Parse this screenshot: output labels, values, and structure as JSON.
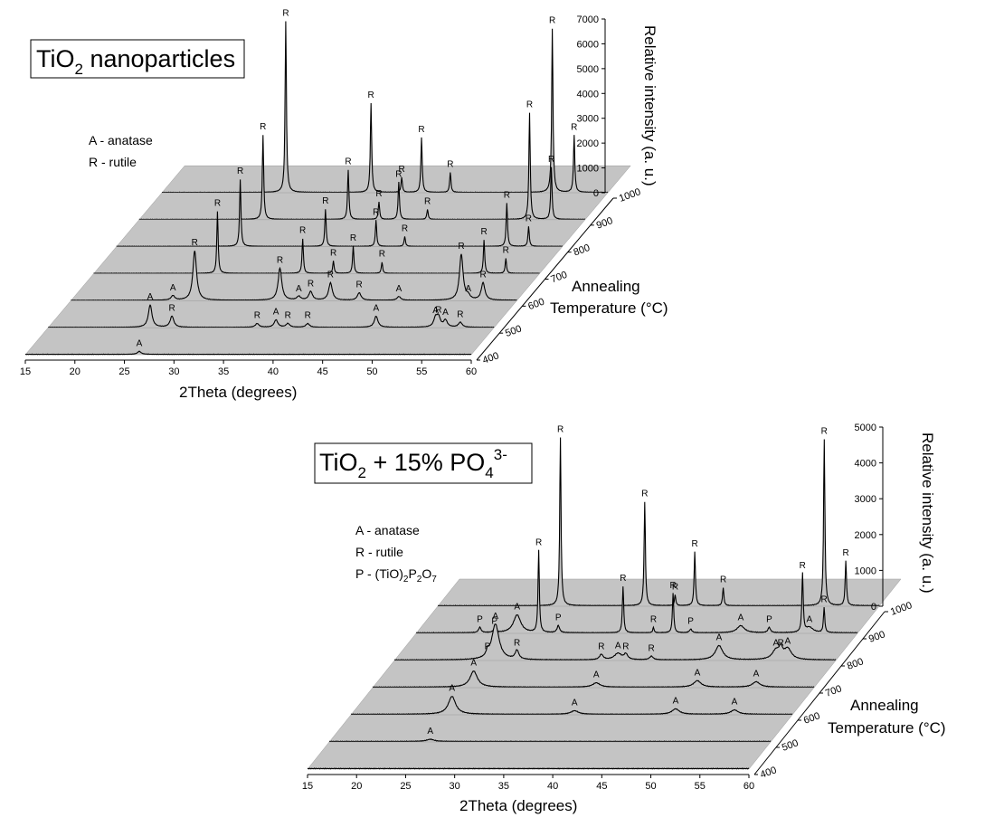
{
  "chart_data": [
    {
      "type": "line",
      "title_main": "TiO",
      "title_sub": "2",
      "title_rest": " nanoparticles",
      "legend": [
        {
          "key": "A",
          "text": "A - anatase"
        },
        {
          "key": "R",
          "text": "R - rutile"
        }
      ],
      "xlabel": "2Theta (degrees)",
      "zlabel_line1": "Annealing",
      "zlabel_line2": "Temperature (°C)",
      "ylabel": "Relative intensity (a. u.)",
      "xlim": [
        15,
        60
      ],
      "x_ticks": [
        15,
        20,
        25,
        30,
        35,
        40,
        45,
        50,
        55,
        60
      ],
      "ylim": [
        0,
        7000
      ],
      "y_ticks": [
        0,
        1000,
        2000,
        3000,
        4000,
        5000,
        6000,
        7000
      ],
      "z_ticks": [
        400,
        500,
        600,
        700,
        800,
        900,
        1000
      ],
      "series": [
        {
          "name": "400",
          "peaks": [
            {
              "x": 26.5,
              "y": 120,
              "label": "A"
            }
          ]
        },
        {
          "name": "500",
          "peaks": [
            {
              "x": 25.3,
              "y": 900,
              "label": "A"
            },
            {
              "x": 27.5,
              "y": 450,
              "label": "R"
            },
            {
              "x": 36.1,
              "y": 150,
              "label": "R"
            },
            {
              "x": 38.0,
              "y": 300,
              "label": "A"
            },
            {
              "x": 39.2,
              "y": 150,
              "label": "R"
            },
            {
              "x": 41.2,
              "y": 150,
              "label": "R"
            },
            {
              "x": 48.1,
              "y": 450,
              "label": "A"
            },
            {
              "x": 54.1,
              "y": 350,
              "label": "A"
            },
            {
              "x": 54.4,
              "y": 380,
              "label": "R"
            },
            {
              "x": 55.1,
              "y": 280,
              "label": "A"
            },
            {
              "x": 56.6,
              "y": 200,
              "label": "R"
            }
          ]
        },
        {
          "name": "600",
          "peaks": [
            {
              "x": 25.3,
              "y": 180,
              "label": "A"
            },
            {
              "x": 27.5,
              "y": 2000,
              "label": "R"
            },
            {
              "x": 36.1,
              "y": 1300,
              "label": "R"
            },
            {
              "x": 38.0,
              "y": 150,
              "label": "A"
            },
            {
              "x": 39.2,
              "y": 350,
              "label": "R"
            },
            {
              "x": 41.2,
              "y": 700,
              "label": "R"
            },
            {
              "x": 44.1,
              "y": 300,
              "label": "R"
            },
            {
              "x": 48.1,
              "y": 150,
              "label": "A"
            },
            {
              "x": 54.4,
              "y": 1850,
              "label": "R"
            },
            {
              "x": 55.1,
              "y": 150,
              "label": "A"
            },
            {
              "x": 56.6,
              "y": 700,
              "label": "R"
            }
          ]
        },
        {
          "name": "700",
          "peaks": [
            {
              "x": 27.5,
              "y": 2500,
              "label": "R"
            },
            {
              "x": 36.1,
              "y": 1400,
              "label": "R"
            },
            {
              "x": 39.2,
              "y": 500,
              "label": "R"
            },
            {
              "x": 41.2,
              "y": 1100,
              "label": "R"
            },
            {
              "x": 44.1,
              "y": 450,
              "label": "R"
            },
            {
              "x": 54.4,
              "y": 1350,
              "label": "R"
            },
            {
              "x": 56.6,
              "y": 600,
              "label": "R"
            }
          ]
        },
        {
          "name": "800",
          "peaks": [
            {
              "x": 27.5,
              "y": 2700,
              "label": "R"
            },
            {
              "x": 36.1,
              "y": 1500,
              "label": "R"
            },
            {
              "x": 41.2,
              "y": 1050,
              "label": "R"
            },
            {
              "x": 44.1,
              "y": 400,
              "label": "R"
            },
            {
              "x": 54.4,
              "y": 1750,
              "label": "R"
            },
            {
              "x": 56.6,
              "y": 800,
              "label": "R"
            }
          ]
        },
        {
          "name": "900",
          "peaks": [
            {
              "x": 27.5,
              "y": 3400,
              "label": "R"
            },
            {
              "x": 36.1,
              "y": 2000,
              "label": "R"
            },
            {
              "x": 39.2,
              "y": 700,
              "label": "R"
            },
            {
              "x": 41.2,
              "y": 1500,
              "label": "R"
            },
            {
              "x": 44.1,
              "y": 400,
              "label": "R"
            },
            {
              "x": 54.4,
              "y": 4300,
              "label": "R"
            },
            {
              "x": 56.6,
              "y": 2100,
              "label": "R"
            }
          ]
        },
        {
          "name": "1000",
          "peaks": [
            {
              "x": 27.5,
              "y": 6900,
              "label": "R"
            },
            {
              "x": 36.1,
              "y": 3600,
              "label": "R"
            },
            {
              "x": 39.2,
              "y": 600,
              "label": "R"
            },
            {
              "x": 41.2,
              "y": 2200,
              "label": "R"
            },
            {
              "x": 44.1,
              "y": 800,
              "label": "R"
            },
            {
              "x": 54.4,
              "y": 6600,
              "label": "R"
            },
            {
              "x": 56.6,
              "y": 2300,
              "label": "R"
            }
          ]
        }
      ]
    },
    {
      "type": "line",
      "title_main": "TiO",
      "title_sub": "2",
      "title_rest": " + 15% PO",
      "title_sub2": "4",
      "title_sup": "3-",
      "legend": [
        {
          "key": "A",
          "text": "A - anatase"
        },
        {
          "key": "R",
          "text": "R - rutile"
        },
        {
          "key": "P",
          "text": "P - (TiO)",
          "sub1": "2",
          "mid": "P",
          "sub2": "2",
          "end": "O",
          "sub3": "7"
        }
      ],
      "xlabel": "2Theta (degrees)",
      "zlabel_line1": "Annealing",
      "zlabel_line2": "Temperature (°C)",
      "ylabel": "Relative intensity (a. u.)",
      "xlim": [
        15,
        60
      ],
      "x_ticks": [
        15,
        20,
        25,
        30,
        35,
        40,
        45,
        50,
        55,
        60
      ],
      "ylim": [
        0,
        5000
      ],
      "y_ticks": [
        0,
        1000,
        2000,
        3000,
        4000,
        5000
      ],
      "z_ticks": [
        400,
        500,
        600,
        700,
        800,
        900,
        1000
      ],
      "series": [
        {
          "name": "400",
          "peaks": []
        },
        {
          "name": "500",
          "peaks": [
            {
              "x": 25.3,
              "y": 60,
              "label": "A"
            }
          ]
        },
        {
          "name": "600",
          "peaks": [
            {
              "x": 25.3,
              "y": 500,
              "label": "A"
            },
            {
              "x": 37.8,
              "y": 100,
              "label": "A"
            },
            {
              "x": 48.1,
              "y": 150,
              "label": "A"
            },
            {
              "x": 54.1,
              "y": 120,
              "label": "A"
            }
          ]
        },
        {
          "name": "700",
          "peaks": [
            {
              "x": 25.3,
              "y": 450,
              "label": "A"
            },
            {
              "x": 37.8,
              "y": 120,
              "label": "A"
            },
            {
              "x": 48.1,
              "y": 180,
              "label": "A"
            },
            {
              "x": 54.1,
              "y": 150,
              "label": "A"
            }
          ]
        },
        {
          "name": "800",
          "peaks": [
            {
              "x": 24.5,
              "y": 150,
              "label": "P"
            },
            {
              "x": 25.3,
              "y": 1000,
              "label": "A"
            },
            {
              "x": 27.5,
              "y": 250,
              "label": "R"
            },
            {
              "x": 36.1,
              "y": 150,
              "label": "R"
            },
            {
              "x": 37.8,
              "y": 180,
              "label": "A"
            },
            {
              "x": 38.6,
              "y": 150,
              "label": "R"
            },
            {
              "x": 41.2,
              "y": 100,
              "label": "R"
            },
            {
              "x": 48.1,
              "y": 400,
              "label": "A"
            },
            {
              "x": 53.9,
              "y": 250,
              "label": "A"
            },
            {
              "x": 54.4,
              "y": 250,
              "label": "R"
            },
            {
              "x": 55.1,
              "y": 300,
              "label": "A"
            }
          ]
        },
        {
          "name": "900",
          "peaks": [
            {
              "x": 21.5,
              "y": 150,
              "label": "P"
            },
            {
              "x": 23.0,
              "y": 100,
              "label": "P"
            },
            {
              "x": 25.3,
              "y": 500,
              "label": "A"
            },
            {
              "x": 27.5,
              "y": 2300,
              "label": "R"
            },
            {
              "x": 29.5,
              "y": 200,
              "label": "P"
            },
            {
              "x": 36.1,
              "y": 1300,
              "label": "R"
            },
            {
              "x": 39.2,
              "y": 150,
              "label": "R"
            },
            {
              "x": 41.2,
              "y": 1100,
              "label": "R"
            },
            {
              "x": 43.0,
              "y": 100,
              "label": "P"
            },
            {
              "x": 48.1,
              "y": 200,
              "label": "A"
            },
            {
              "x": 51.0,
              "y": 150,
              "label": "P"
            },
            {
              "x": 54.4,
              "y": 1650,
              "label": "R"
            },
            {
              "x": 55.1,
              "y": 150,
              "label": "A"
            },
            {
              "x": 56.6,
              "y": 700,
              "label": "R"
            }
          ]
        },
        {
          "name": "1000",
          "peaks": [
            {
              "x": 27.5,
              "y": 4700,
              "label": "R"
            },
            {
              "x": 36.1,
              "y": 2900,
              "label": "R"
            },
            {
              "x": 39.2,
              "y": 300,
              "label": "R"
            },
            {
              "x": 41.2,
              "y": 1500,
              "label": "R"
            },
            {
              "x": 44.1,
              "y": 500,
              "label": "R"
            },
            {
              "x": 54.4,
              "y": 4650,
              "label": "R"
            },
            {
              "x": 56.6,
              "y": 1250,
              "label": "R"
            }
          ]
        }
      ]
    }
  ]
}
